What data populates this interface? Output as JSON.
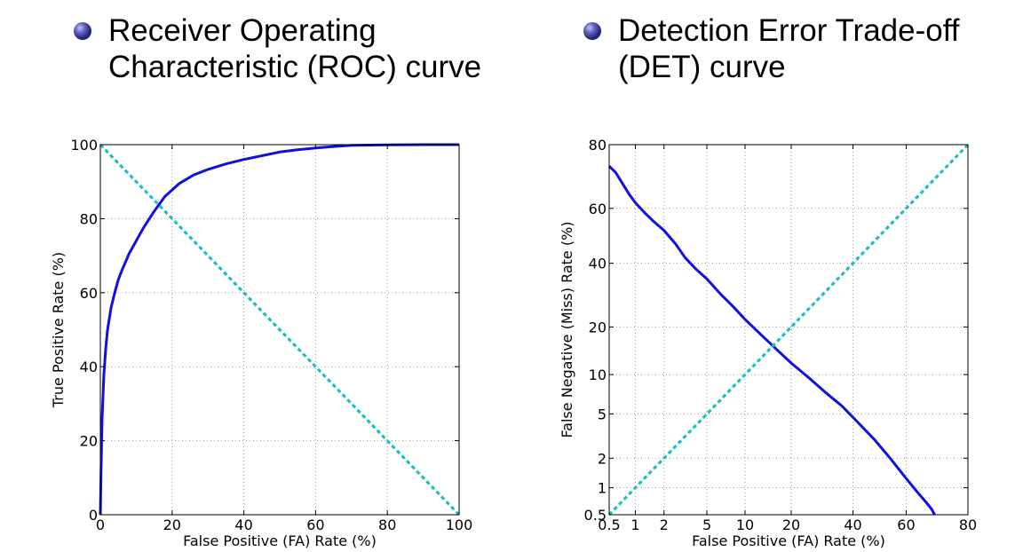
{
  "headings": {
    "left": [
      "Receiver Operating",
      "Characteristic (ROC) curve"
    ],
    "right": [
      "Detection Error Trade-off",
      "(DET) curve"
    ]
  },
  "colors": {
    "curve": "#1010e0",
    "diagonal": "#20bfbf",
    "grid": "#9a9a9a",
    "axis": "#000000",
    "bullet": "#26297e"
  },
  "chart_data": [
    {
      "type": "line",
      "name": "roc",
      "title": "",
      "xlabel": "False Positive (FA) Rate (%)",
      "ylabel": "True Positive Rate (%)",
      "xlim": [
        0,
        100
      ],
      "ylim": [
        0,
        100
      ],
      "xticks": [
        0,
        20,
        40,
        60,
        80,
        100
      ],
      "yticks": [
        0,
        20,
        40,
        60,
        80,
        100
      ],
      "grid": true,
      "series": [
        {
          "style": "solid",
          "x": [
            0,
            0.2,
            0.5,
            1,
            1.5,
            2,
            3,
            4,
            5,
            6,
            8,
            10,
            12,
            15,
            18,
            22,
            26,
            30,
            35,
            40,
            45,
            50,
            55,
            60,
            65,
            70,
            80,
            90,
            100
          ],
          "y": [
            0,
            12,
            26,
            38,
            45,
            50,
            56,
            60,
            63.5,
            66,
            70.5,
            74,
            77.5,
            82,
            86,
            89.5,
            91.8,
            93.3,
            94.8,
            96,
            97,
            98,
            98.6,
            99.1,
            99.5,
            99.8,
            99.95,
            100,
            100
          ]
        },
        {
          "style": "dashed",
          "x": [
            0,
            100
          ],
          "y": [
            100,
            0
          ]
        }
      ]
    },
    {
      "type": "line",
      "name": "det",
      "title": "",
      "xlabel": "False Positive (FA) Rate (%)",
      "ylabel": "False Negative (Miss) Rate (%)",
      "scale": "normal-deviate",
      "xlim": [
        0.5,
        80
      ],
      "ylim": [
        0.5,
        80
      ],
      "xticks": [
        0.5,
        1,
        2,
        5,
        10,
        20,
        40,
        60,
        80
      ],
      "yticks": [
        0.5,
        1,
        2,
        5,
        10,
        20,
        40,
        60,
        80
      ],
      "grid": true,
      "series": [
        {
          "style": "solid",
          "x": [
            0.5,
            0.6,
            0.7,
            0.85,
            1,
            1.3,
            1.6,
            2,
            2.6,
            3.2,
            4,
            5,
            6.5,
            8,
            10,
            13,
            16,
            20,
            25,
            30,
            36,
            42,
            48,
            54,
            60,
            64,
            67,
            69,
            70
          ],
          "y": [
            74,
            72,
            69,
            65,
            62,
            58,
            55,
            52,
            47,
            42,
            38,
            34.5,
            29.5,
            26,
            22,
            18,
            15,
            12,
            9.5,
            7.5,
            5.8,
            4.2,
            3,
            2,
            1.25,
            0.9,
            0.7,
            0.58,
            0.5
          ]
        },
        {
          "style": "dashed",
          "x": [
            0.5,
            80
          ],
          "y": [
            0.5,
            80
          ]
        }
      ]
    }
  ]
}
